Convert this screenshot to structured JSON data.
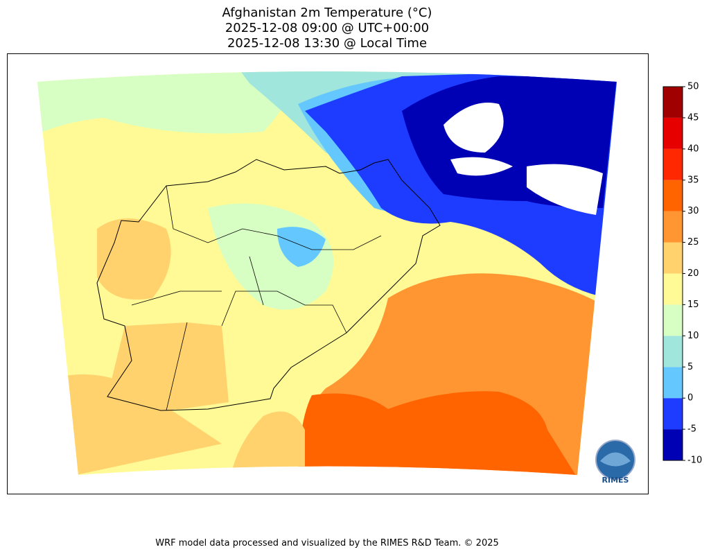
{
  "title": [
    "Afghanistan 2m Temperature (°C)",
    "2025-12-08 09:00 @ UTC+00:00",
    "2025-12-08 13:30 @ Local Time"
  ],
  "colorbar": {
    "ticks": [
      -10,
      -5,
      0,
      5,
      10,
      15,
      20,
      25,
      30,
      35,
      40,
      45,
      50
    ],
    "colors": [
      "#0000b4",
      "#1e3cff",
      "#64c8ff",
      "#a0e6dc",
      "#d7ffc3",
      "#fffa96",
      "#ffd26e",
      "#ff9632",
      "#ff6400",
      "#ff2800",
      "#e60000",
      "#a00000"
    ]
  },
  "logo": "RIMES",
  "footer": "WRF model data processed and visualized by the RIMES R&D Team. © 2025"
}
